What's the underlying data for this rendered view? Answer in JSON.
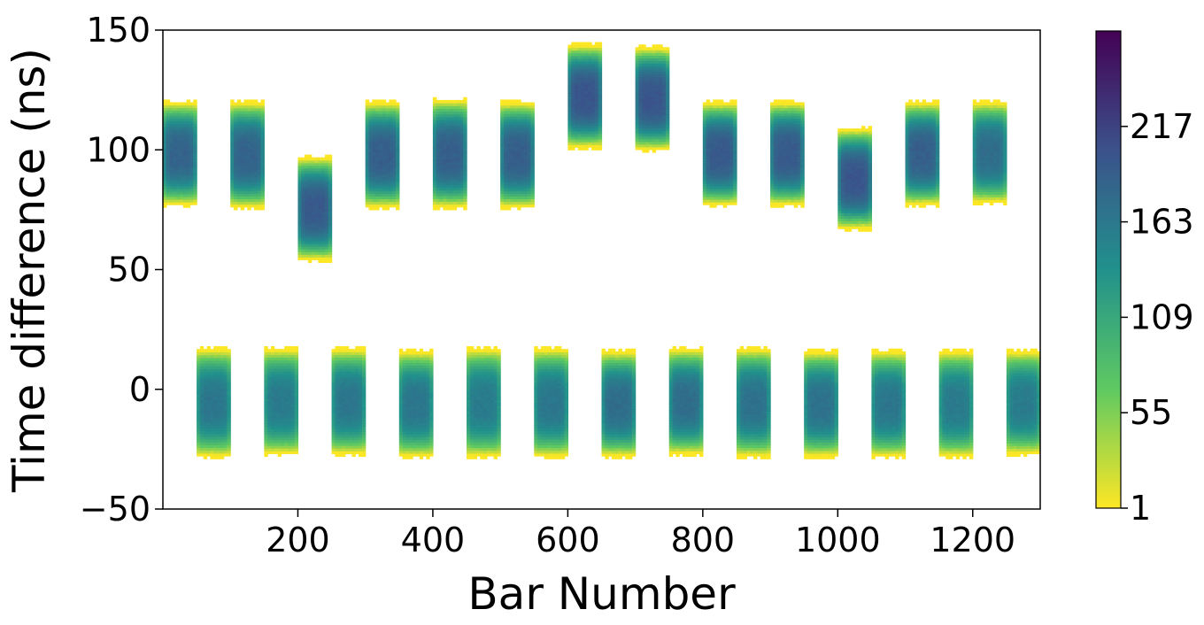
{
  "chart_data": {
    "type": "heatmap",
    "title": "",
    "xlabel": "Bar Number",
    "ylabel": "Time difference (ns)",
    "xlim": [
      0,
      1300
    ],
    "ylim": [
      -50,
      150
    ],
    "xticks": [
      200,
      400,
      600,
      800,
      1000,
      1200
    ],
    "yticks": [
      -50,
      0,
      50,
      100,
      150
    ],
    "grid": false,
    "colormap": "viridis_r",
    "colorbar": {
      "ticks": [
        1,
        55,
        109,
        163,
        217
      ],
      "range": [
        1,
        271
      ],
      "colors": [
        "#fde725",
        "#5ec962",
        "#21918c",
        "#3b528b",
        "#440154"
      ]
    },
    "upper_clusters": [
      {
        "x_start": 0,
        "x_end": 50,
        "y_low": 80,
        "y_high": 117,
        "peak": 185
      },
      {
        "x_start": 100,
        "x_end": 150,
        "y_low": 79,
        "y_high": 117,
        "peak": 185
      },
      {
        "x_start": 200,
        "x_end": 250,
        "y_low": 57,
        "y_high": 94,
        "peak": 195
      },
      {
        "x_start": 300,
        "x_end": 350,
        "y_low": 79,
        "y_high": 117,
        "peak": 190
      },
      {
        "x_start": 400,
        "x_end": 450,
        "y_low": 79,
        "y_high": 118,
        "peak": 190
      },
      {
        "x_start": 500,
        "x_end": 550,
        "y_low": 79,
        "y_high": 117,
        "peak": 190
      },
      {
        "x_start": 600,
        "x_end": 650,
        "y_low": 104,
        "y_high": 141,
        "peak": 200
      },
      {
        "x_start": 700,
        "x_end": 750,
        "y_low": 103,
        "y_high": 140,
        "peak": 200
      },
      {
        "x_start": 800,
        "x_end": 850,
        "y_low": 80,
        "y_high": 117,
        "peak": 195
      },
      {
        "x_start": 900,
        "x_end": 950,
        "y_low": 80,
        "y_high": 117,
        "peak": 195
      },
      {
        "x_start": 1000,
        "x_end": 1050,
        "y_low": 70,
        "y_high": 106,
        "peak": 200
      },
      {
        "x_start": 1100,
        "x_end": 1150,
        "y_low": 80,
        "y_high": 117,
        "peak": 190
      },
      {
        "x_start": 1200,
        "x_end": 1250,
        "y_low": 81,
        "y_high": 117,
        "peak": 175
      }
    ],
    "lower_clusters": [
      {
        "x_start": 50,
        "x_end": 100,
        "y_low": -25,
        "y_high": 14,
        "peak": 165
      },
      {
        "x_start": 150,
        "x_end": 200,
        "y_low": -24,
        "y_high": 14,
        "peak": 160
      },
      {
        "x_start": 250,
        "x_end": 300,
        "y_low": -24,
        "y_high": 14,
        "peak": 165
      },
      {
        "x_start": 350,
        "x_end": 400,
        "y_low": -25,
        "y_high": 13,
        "peak": 165
      },
      {
        "x_start": 450,
        "x_end": 500,
        "y_low": -25,
        "y_high": 14,
        "peak": 160
      },
      {
        "x_start": 550,
        "x_end": 600,
        "y_low": -25,
        "y_high": 14,
        "peak": 165
      },
      {
        "x_start": 650,
        "x_end": 700,
        "y_low": -25,
        "y_high": 13,
        "peak": 175
      },
      {
        "x_start": 750,
        "x_end": 800,
        "y_low": -24,
        "y_high": 14,
        "peak": 175
      },
      {
        "x_start": 850,
        "x_end": 900,
        "y_low": -25,
        "y_high": 14,
        "peak": 170
      },
      {
        "x_start": 950,
        "x_end": 1000,
        "y_low": -25,
        "y_high": 13,
        "peak": 170
      },
      {
        "x_start": 1050,
        "x_end": 1100,
        "y_low": -25,
        "y_high": 13,
        "peak": 165
      },
      {
        "x_start": 1150,
        "x_end": 1200,
        "y_low": -25,
        "y_high": 13,
        "peak": 160
      },
      {
        "x_start": 1250,
        "x_end": 1300,
        "y_low": -24,
        "y_high": 13,
        "peak": 160
      }
    ]
  }
}
